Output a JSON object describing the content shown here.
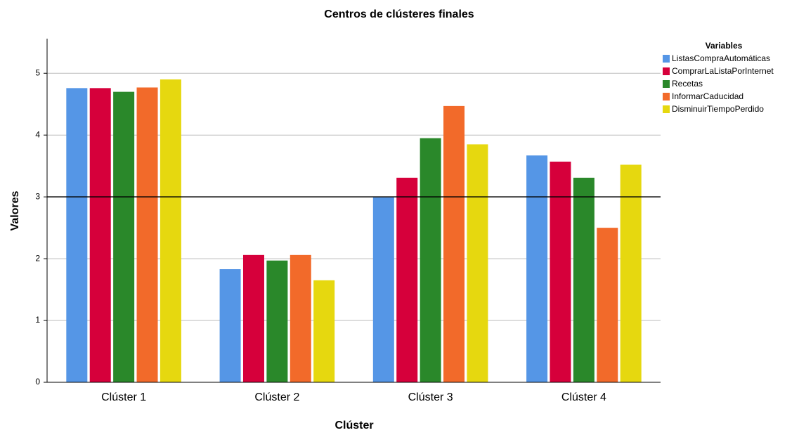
{
  "chart_data": {
    "type": "bar",
    "title": "Centros de clústeres finales",
    "x_label": "Clúster",
    "y_label": "Valores",
    "legend_title": "Variables",
    "categories": [
      "Clúster 1",
      "Clúster 2",
      "Clúster 3",
      "Clúster 4"
    ],
    "series": [
      {
        "name": "ListasCompraAutomáticas",
        "color": "#5596e6",
        "values": [
          4.76,
          1.83,
          2.99,
          3.67
        ]
      },
      {
        "name": "ComprarLaListaPorInternet",
        "color": "#d6003b",
        "values": [
          4.76,
          2.06,
          3.31,
          3.57
        ]
      },
      {
        "name": "Recetas",
        "color": "#2a882a",
        "values": [
          4.7,
          1.97,
          3.95,
          3.31
        ]
      },
      {
        "name": "InformarCaducidad",
        "color": "#f26a2a",
        "values": [
          4.77,
          2.06,
          4.47,
          2.5
        ]
      },
      {
        "name": "DisminuirTiempoPerdido",
        "color": "#e6d80f",
        "values": [
          4.9,
          1.65,
          3.85,
          3.52
        ]
      }
    ],
    "ylim": [
      0,
      5.56
    ],
    "yticks": [
      0,
      1,
      2,
      3,
      4,
      5
    ],
    "grid": true,
    "reference_line": 3,
    "legend_position": "top-right"
  }
}
